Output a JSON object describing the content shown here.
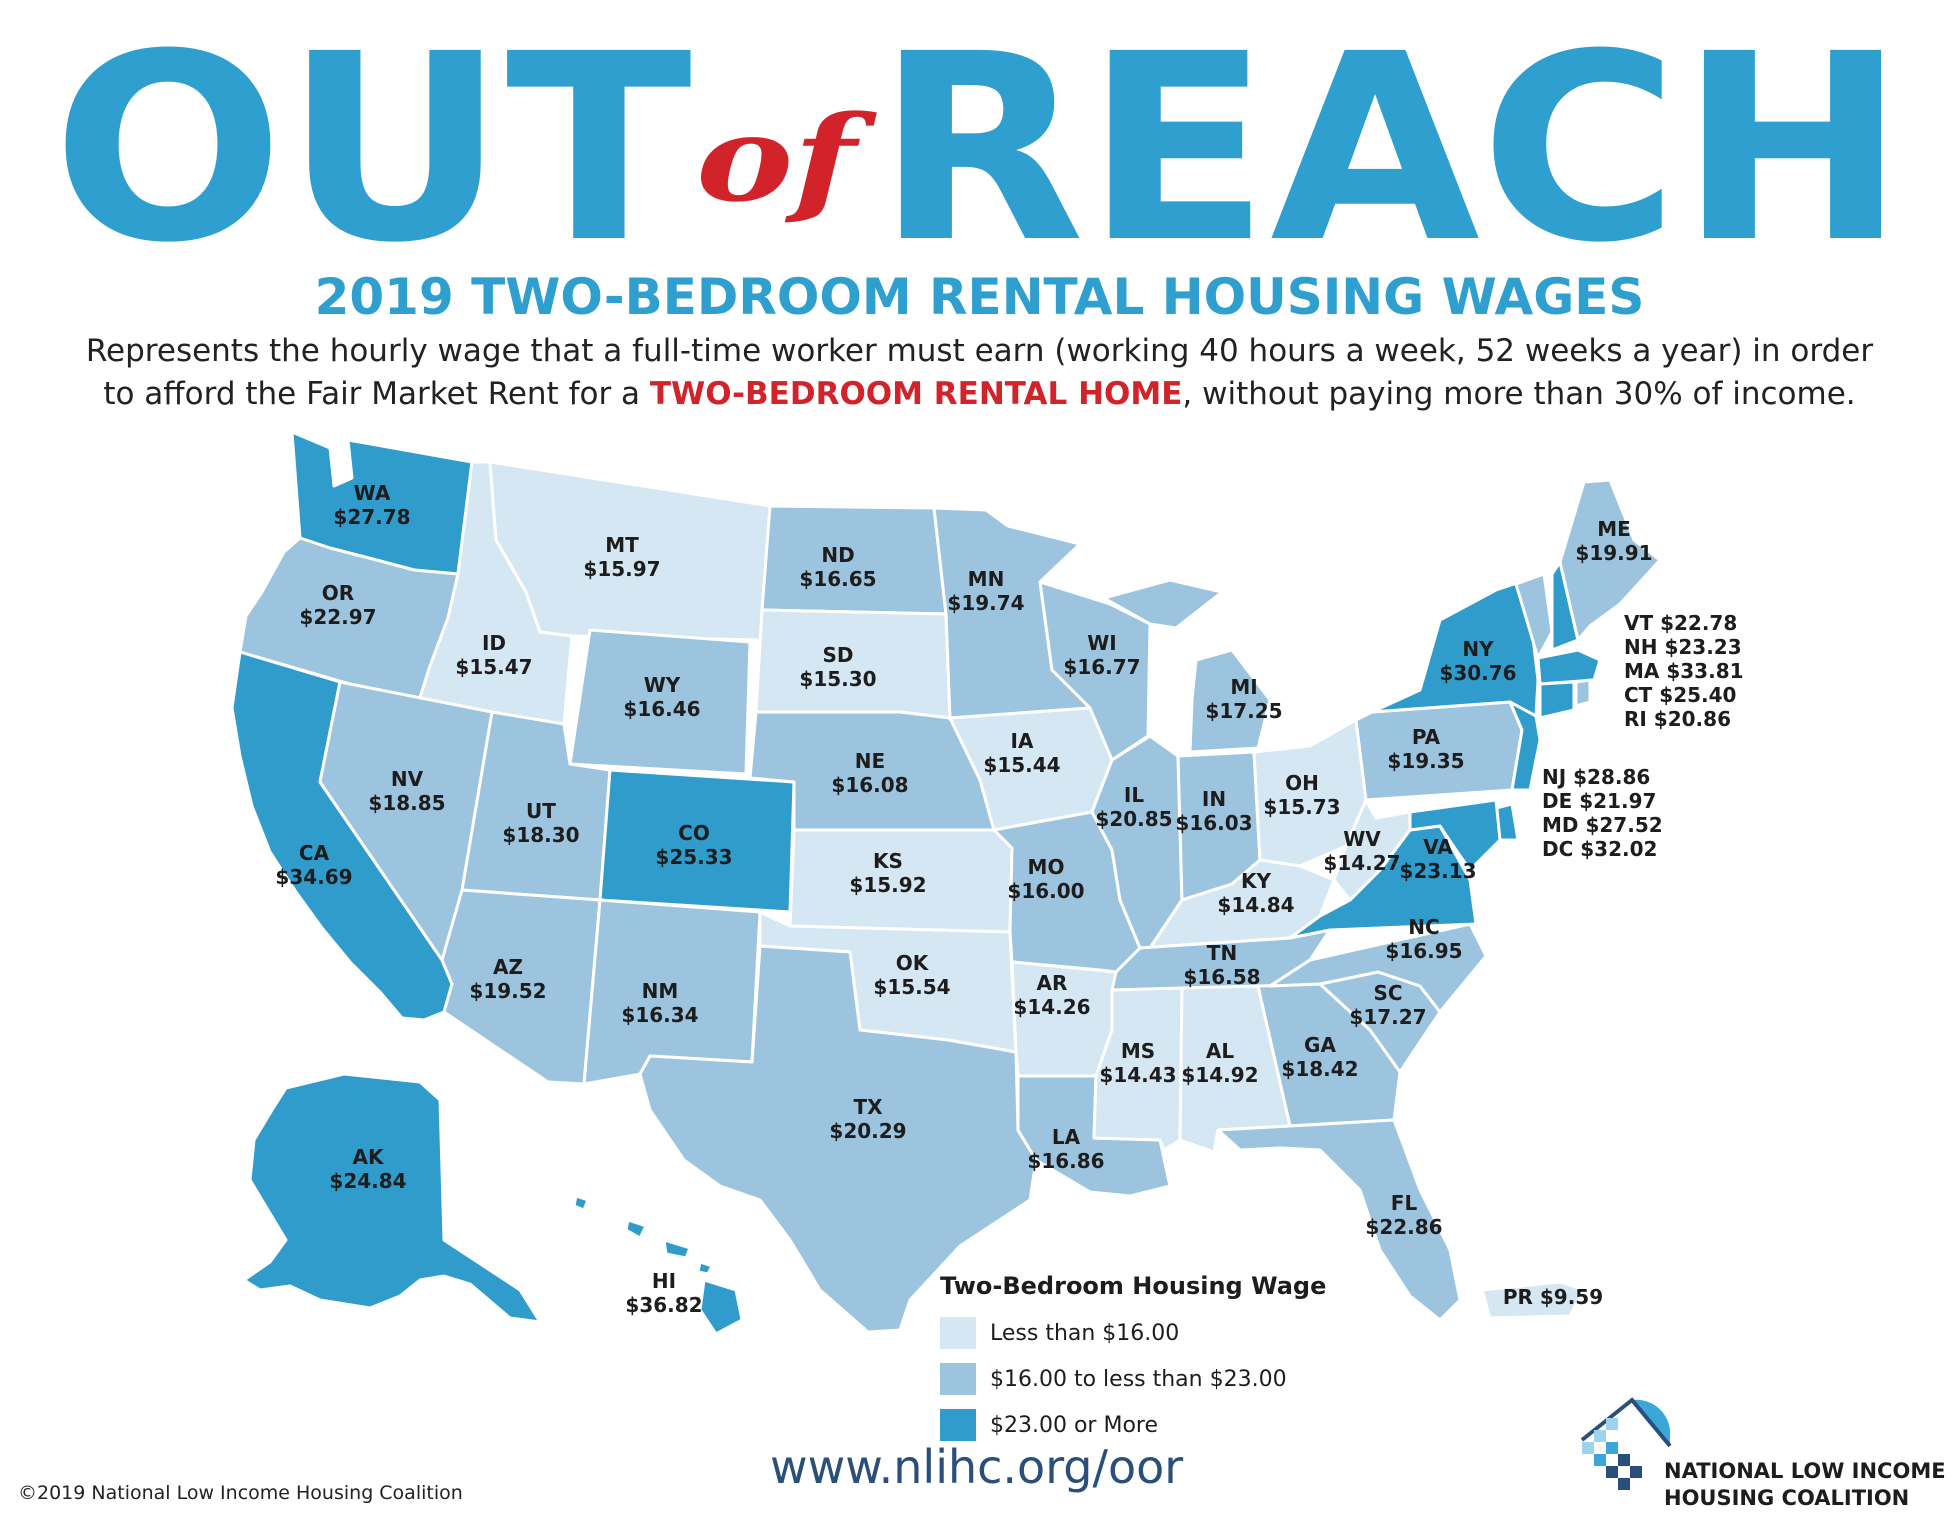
{
  "header": {
    "title_word1": "OUT",
    "title_word2": "of",
    "title_word3": "REACH",
    "subtitle": "2019 TWO-BEDROOM RENTAL HOUSING WAGES",
    "desc_line1": "Represents the hourly wage that a full-time worker must earn (working 40 hours a week, 52 weeks a year) in order",
    "desc_line2_pre": "to afford the Fair Market Rent for a ",
    "desc_line2_hl": "TWO-BEDROOM RENTAL HOME",
    "desc_line2_post": ", without paying more than 30% of income."
  },
  "colors": {
    "title_blue": "#2e9fcf",
    "title_red": "#d2232a",
    "tier_low": "#d5e7f2",
    "tier_mid": "#9dc4de",
    "tier_high": "#2f9ccb"
  },
  "states": {
    "WA": {
      "abbr": "WA",
      "wage": "$27.78"
    },
    "OR": {
      "abbr": "OR",
      "wage": "$22.97"
    },
    "CA": {
      "abbr": "CA",
      "wage": "$34.69"
    },
    "ID": {
      "abbr": "ID",
      "wage": "$15.47"
    },
    "NV": {
      "abbr": "NV",
      "wage": "$18.85"
    },
    "MT": {
      "abbr": "MT",
      "wage": "$15.97"
    },
    "WY": {
      "abbr": "WY",
      "wage": "$16.46"
    },
    "UT": {
      "abbr": "UT",
      "wage": "$18.30"
    },
    "AZ": {
      "abbr": "AZ",
      "wage": "$19.52"
    },
    "CO": {
      "abbr": "CO",
      "wage": "$25.33"
    },
    "NM": {
      "abbr": "NM",
      "wage": "$16.34"
    },
    "ND": {
      "abbr": "ND",
      "wage": "$16.65"
    },
    "SD": {
      "abbr": "SD",
      "wage": "$15.30"
    },
    "NE": {
      "abbr": "NE",
      "wage": "$16.08"
    },
    "KS": {
      "abbr": "KS",
      "wage": "$15.92"
    },
    "OK": {
      "abbr": "OK",
      "wage": "$15.54"
    },
    "TX": {
      "abbr": "TX",
      "wage": "$20.29"
    },
    "MN": {
      "abbr": "MN",
      "wage": "$19.74"
    },
    "IA": {
      "abbr": "IA",
      "wage": "$15.44"
    },
    "MO": {
      "abbr": "MO",
      "wage": "$16.00"
    },
    "AR": {
      "abbr": "AR",
      "wage": "$14.26"
    },
    "LA": {
      "abbr": "LA",
      "wage": "$16.86"
    },
    "WI": {
      "abbr": "WI",
      "wage": "$16.77"
    },
    "IL": {
      "abbr": "IL",
      "wage": "$20.85"
    },
    "MI": {
      "abbr": "MI",
      "wage": "$17.25"
    },
    "IN": {
      "abbr": "IN",
      "wage": "$16.03"
    },
    "OH": {
      "abbr": "OH",
      "wage": "$15.73"
    },
    "KY": {
      "abbr": "KY",
      "wage": "$14.84"
    },
    "TN": {
      "abbr": "TN",
      "wage": "$16.58"
    },
    "MS": {
      "abbr": "MS",
      "wage": "$14.43"
    },
    "AL": {
      "abbr": "AL",
      "wage": "$14.92"
    },
    "GA": {
      "abbr": "GA",
      "wage": "$18.42"
    },
    "FL": {
      "abbr": "FL",
      "wage": "$22.86"
    },
    "SC": {
      "abbr": "SC",
      "wage": "$17.27"
    },
    "NC": {
      "abbr": "NC",
      "wage": "$16.95"
    },
    "VA": {
      "abbr": "VA",
      "wage": "$23.13"
    },
    "WV": {
      "abbr": "WV",
      "wage": "$14.27"
    },
    "PA": {
      "abbr": "PA",
      "wage": "$19.35"
    },
    "NY": {
      "abbr": "NY",
      "wage": "$30.76"
    },
    "ME": {
      "abbr": "ME",
      "wage": "$19.91"
    },
    "AK": {
      "abbr": "AK",
      "wage": "$24.84"
    },
    "HI": {
      "abbr": "HI",
      "wage": "$36.82"
    }
  },
  "northeast_list": [
    "VT $22.78",
    "NH $23.23",
    "MA $33.81",
    "CT $25.40",
    "RI $20.86"
  ],
  "midatlantic_list": [
    "NJ $28.86",
    "DE $21.97",
    "MD $27.52",
    "DC $32.02"
  ],
  "pr_label": "PR $9.59",
  "legend": {
    "title": "Two-Bedroom Housing Wage",
    "items": [
      {
        "label": "Less than $16.00"
      },
      {
        "label": "$16.00 to less than $23.00"
      },
      {
        "label": "$23.00 or More"
      }
    ]
  },
  "footer": {
    "url": "www.nlihc.org/oor",
    "copyright": "©2019 National Low Income Housing Coalition",
    "org_line1": "NATIONAL LOW INCOME",
    "org_line2": "HOUSING COALITION"
  }
}
